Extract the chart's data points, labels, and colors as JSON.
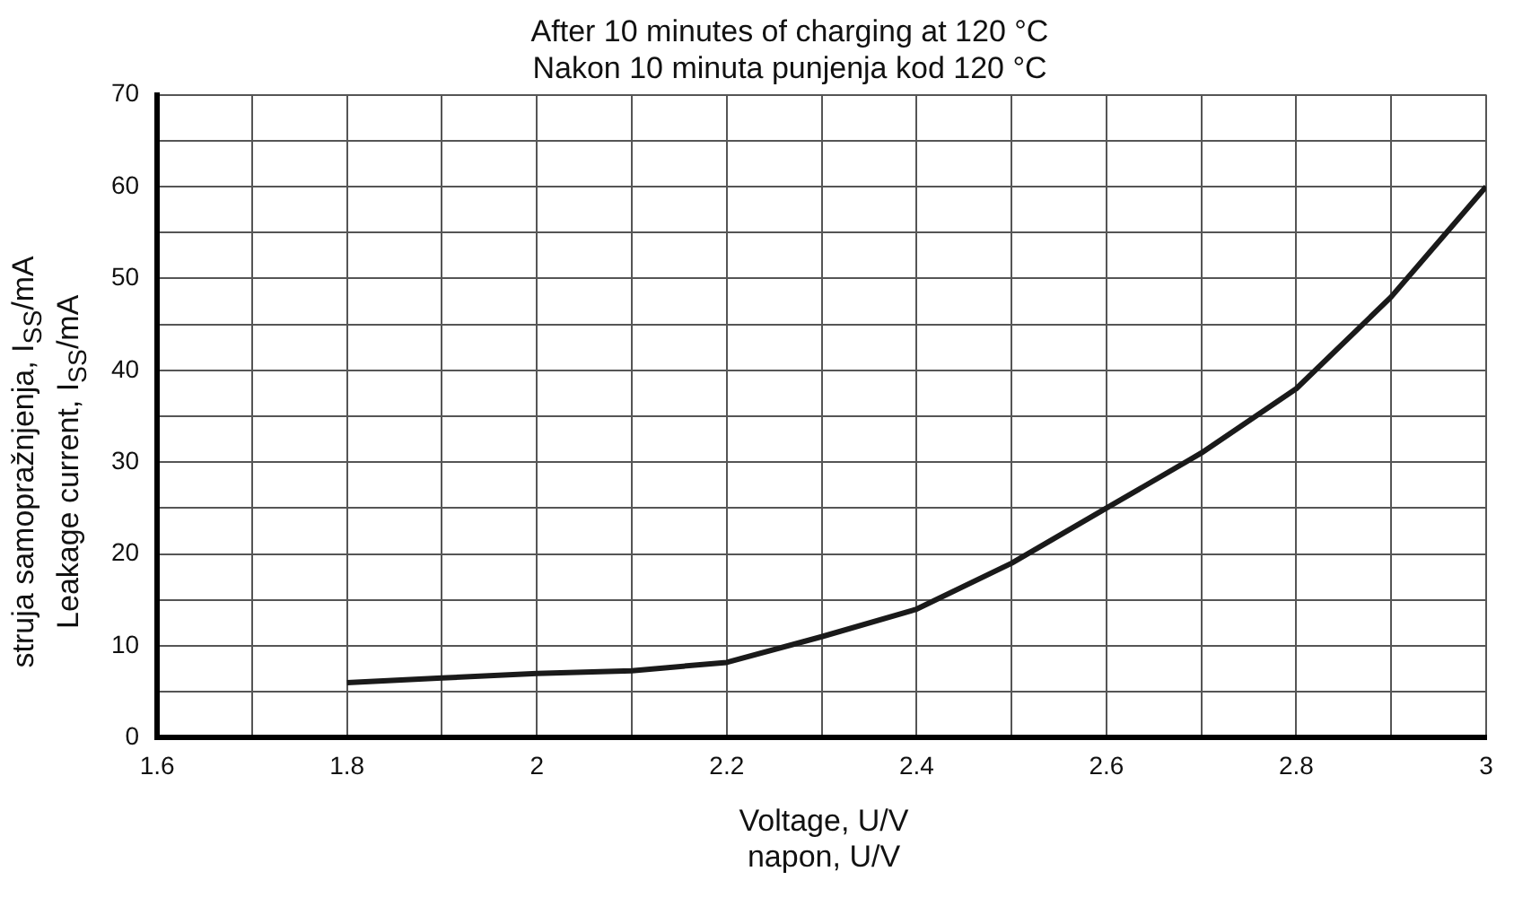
{
  "chart_data": {
    "type": "line",
    "title": "After 10 minutes of charging at 120 °C\nNakon 10 minuta punjenja kod 120 °C",
    "xlabel": "Voltage, U/V\nnapon, U/V",
    "ylabel": "struja samopražnjenja, I$_{SS}$/mA\nLeakage current, I$_{SS}$/mA",
    "x": [
      1.8,
      1.9,
      2.0,
      2.1,
      2.2,
      2.3,
      2.4,
      2.5,
      2.6,
      2.7,
      2.8,
      2.9,
      3.0
    ],
    "series": [
      {
        "color": "#1a1a1a",
        "values": [
          6,
          6.5,
          7,
          7.3,
          8.2,
          11,
          14,
          19,
          25,
          31,
          38,
          48,
          60
        ]
      }
    ],
    "xlim": [
      1.6,
      3.0
    ],
    "xticks": [
      1.6,
      {
        "value": 1.7,
        "label": null
      },
      1.8,
      {
        "value": 1.9,
        "label": null
      },
      2,
      {
        "value": 2.1,
        "label": null
      },
      2.2,
      {
        "value": 2.3,
        "label": null
      },
      2.4,
      {
        "value": 2.5,
        "label": null
      },
      2.6,
      {
        "value": 2.7,
        "label": null
      },
      2.8,
      {
        "value": 2.9,
        "label": null
      },
      3
    ],
    "ylim": [
      0,
      70
    ],
    "yticks": [
      0,
      {
        "value": 5,
        "label": null
      },
      10,
      {
        "value": 15,
        "label": null
      },
      20,
      {
        "value": 25,
        "label": null
      },
      30,
      {
        "value": 35,
        "label": null
      },
      40,
      {
        "value": 45,
        "label": null
      },
      50,
      {
        "value": 55,
        "label": null
      },
      60,
      {
        "value": 65,
        "label": null
      },
      70
    ],
    "grid": true,
    "legend": false,
    "marker": "none",
    "line_style": "solid"
  }
}
